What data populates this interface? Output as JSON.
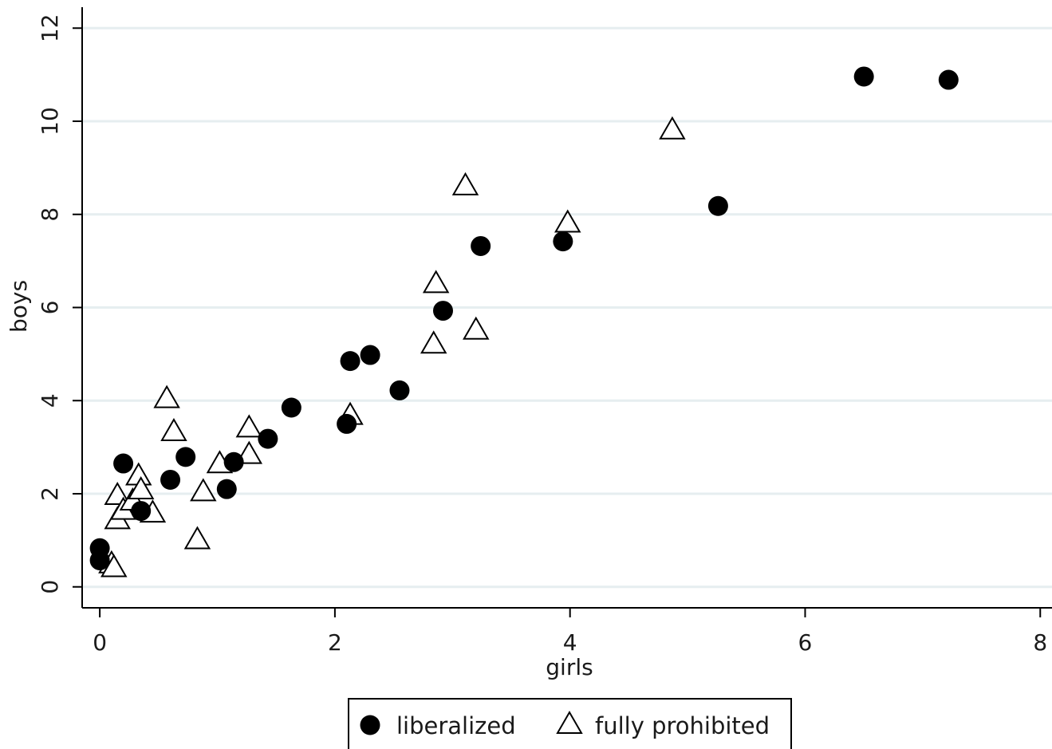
{
  "colors": {
    "grid": "#e6eef0",
    "marker": "#000000",
    "axis": "#000000",
    "background": "#ffffff"
  },
  "chart_data": {
    "type": "scatter",
    "xlabel": "girls",
    "ylabel": "boys",
    "xlim": [
      -0.15,
      8.1
    ],
    "ylim": [
      -0.45,
      12.45
    ],
    "xticks": [
      0,
      2,
      4,
      6,
      8
    ],
    "yticks": [
      0,
      2,
      4,
      6,
      8,
      10,
      12
    ],
    "xtick_labels": [
      "0",
      "2",
      "4",
      "6",
      "8"
    ],
    "ytick_labels": [
      "0",
      "2",
      "4",
      "6",
      "8",
      "10",
      "12"
    ],
    "grid": "horizontal",
    "legend_position": "bottom",
    "series": [
      {
        "name": "liberalized",
        "marker": "filled-circle",
        "points": [
          [
            0.0,
            0.83
          ],
          [
            0.0,
            0.57
          ],
          [
            0.2,
            2.65
          ],
          [
            0.35,
            1.63
          ],
          [
            0.6,
            2.3
          ],
          [
            0.73,
            2.79
          ],
          [
            1.08,
            2.1
          ],
          [
            1.14,
            2.68
          ],
          [
            1.43,
            3.18
          ],
          [
            1.63,
            3.85
          ],
          [
            2.1,
            3.5
          ],
          [
            2.13,
            4.85
          ],
          [
            2.3,
            4.98
          ],
          [
            2.55,
            4.22
          ],
          [
            2.92,
            5.93
          ],
          [
            3.24,
            7.32
          ],
          [
            3.94,
            7.42
          ],
          [
            5.26,
            8.18
          ],
          [
            6.5,
            10.96
          ],
          [
            7.22,
            10.89
          ]
        ]
      },
      {
        "name": "fully prohibited",
        "marker": "hollow-triangle",
        "points": [
          [
            0.1,
            0.53
          ],
          [
            0.12,
            0.45
          ],
          [
            0.15,
            1.48
          ],
          [
            0.15,
            2.0
          ],
          [
            0.2,
            1.68
          ],
          [
            0.28,
            1.88
          ],
          [
            0.33,
            2.42
          ],
          [
            0.35,
            2.12
          ],
          [
            0.45,
            1.62
          ],
          [
            0.57,
            4.08
          ],
          [
            0.63,
            3.37
          ],
          [
            0.83,
            1.05
          ],
          [
            0.88,
            2.08
          ],
          [
            1.02,
            2.68
          ],
          [
            1.27,
            2.88
          ],
          [
            1.27,
            3.45
          ],
          [
            2.13,
            3.72
          ],
          [
            2.84,
            5.25
          ],
          [
            2.86,
            6.55
          ],
          [
            3.11,
            8.65
          ],
          [
            3.2,
            5.55
          ],
          [
            3.98,
            7.85
          ],
          [
            4.87,
            9.85
          ]
        ]
      }
    ]
  }
}
